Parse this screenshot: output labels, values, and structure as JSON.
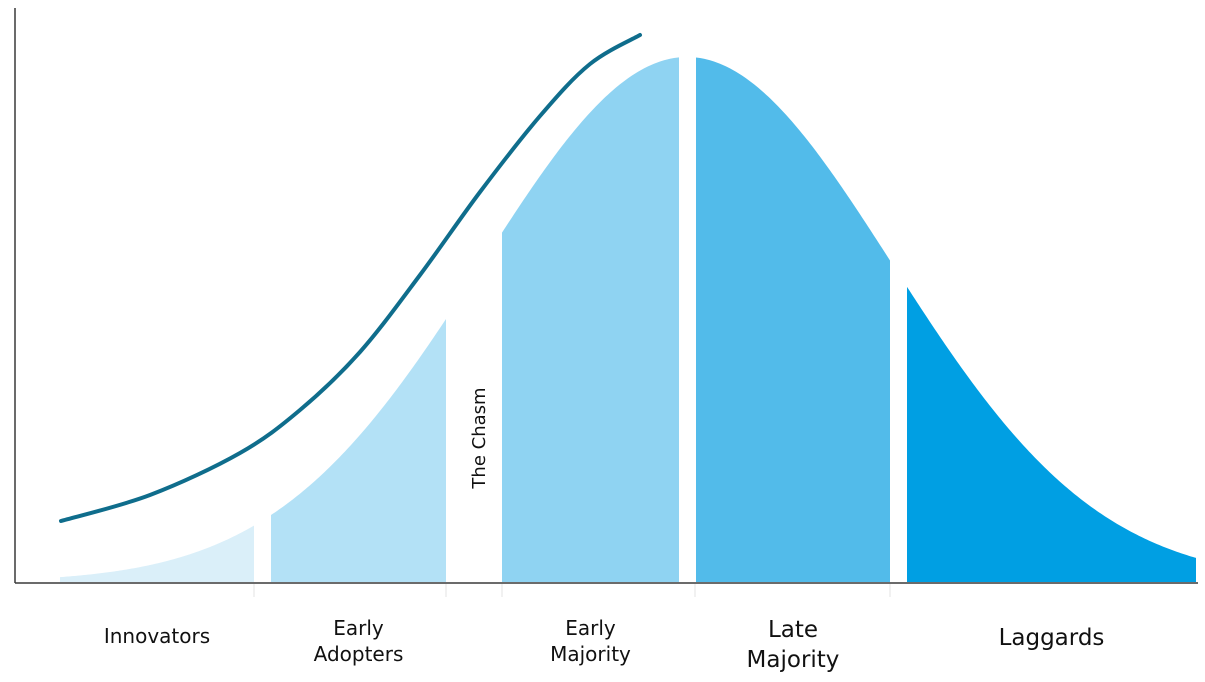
{
  "segments": [
    {
      "id": "innovators",
      "label_lines": [
        "Innovators"
      ],
      "color": "#daeff9"
    },
    {
      "id": "early-adopters",
      "label_lines": [
        "Early",
        "Adopters"
      ],
      "color": "#b3e1f6"
    },
    {
      "id": "early-majority",
      "label_lines": [
        "Early",
        "Majority"
      ],
      "color": "#8fd3f2"
    },
    {
      "id": "late-majority",
      "label_lines": [
        "Late",
        "Majority"
      ],
      "color": "#52bbea"
    },
    {
      "id": "laggards",
      "label_lines": [
        "Laggards"
      ],
      "color": "#009fe3"
    }
  ],
  "chasm": {
    "label": "The Chasm"
  },
  "curve_color": "#0f6d8c",
  "axis_color": "#3a3a3a"
}
